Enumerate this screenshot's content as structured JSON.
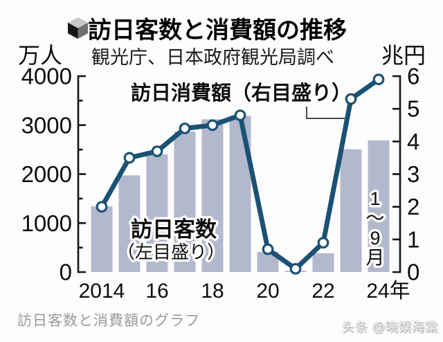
{
  "header": {
    "title": "訪日客数と消費額の推移",
    "source_note": "観光庁、日本政府観光局調べ",
    "left_axis_unit": "万人",
    "right_axis_unit": "兆円"
  },
  "chart_data": {
    "type": "bar+line",
    "title": "訪日客数と消費額の推移",
    "source": "観光庁、日本政府観光局調べ",
    "categories": [
      "2014",
      "2015",
      "2016",
      "2017",
      "2018",
      "2019",
      "2020",
      "2021",
      "2022",
      "2023",
      "2024"
    ],
    "x_axis": {
      "tick_labels": [
        "2014",
        "16",
        "18",
        "20",
        "22",
        "24年"
      ],
      "tick_category_indexes": [
        0,
        2,
        4,
        6,
        8,
        10
      ]
    },
    "left_axis": {
      "unit": "万人",
      "min": 0,
      "max": 4000,
      "major_tick_step": 1000,
      "minor_tick_step": 500,
      "tick_labels": [
        "0",
        "1000",
        "2000",
        "3000",
        "4000"
      ]
    },
    "right_axis": {
      "unit": "兆円",
      "min": 0,
      "max": 6,
      "tick_step": 1,
      "tick_labels": [
        "0",
        "1",
        "2",
        "3",
        "4",
        "5",
        "6"
      ]
    },
    "series": [
      {
        "name": "訪日客数",
        "label": "訪日客数",
        "sub_label": "（左目盛り）",
        "type": "bar",
        "axis": "left",
        "unit": "万人",
        "values": [
          1341,
          1974,
          2404,
          2869,
          3119,
          3188,
          412,
          25,
          383,
          2507,
          2688
        ]
      },
      {
        "name": "訪日消費額",
        "label": "訪日消費額（右目盛り）",
        "type": "line",
        "axis": "right",
        "unit": "兆円",
        "values": [
          2.0,
          3.5,
          3.7,
          4.4,
          4.5,
          4.8,
          0.7,
          0.1,
          0.9,
          5.3,
          5.9
        ]
      }
    ],
    "annotations": {
      "last_bar_note": "1～9月"
    },
    "colors": {
      "bar": "#b3b9cd",
      "line": "#1b5274",
      "marker_fill": "#ffffff",
      "axis": "#121212"
    },
    "legend_position": "in-plot annotations",
    "grid": false
  },
  "footer": {
    "caption": "訪日客数と消費額のグラフ",
    "watermark": "头条 @晓娱海棠"
  }
}
